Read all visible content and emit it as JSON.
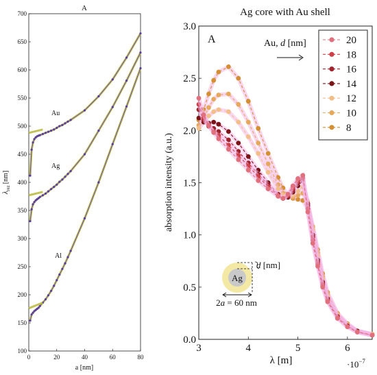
{
  "chart_data": [
    {
      "type": "line",
      "title": "A",
      "xlabel": "a [nm]",
      "ylabel": "λrez [nm]",
      "ylabel_main": "λ",
      "ylabel_sub": "rez",
      "ylabel_unit": "[nm]",
      "xlim": [
        0,
        80
      ],
      "ylim": [
        100,
        700
      ],
      "x_ticks": [
        0,
        20,
        40,
        60,
        80
      ],
      "y_ticks": [
        100,
        150,
        200,
        250,
        300,
        350,
        400,
        450,
        500,
        550,
        600,
        650,
        700
      ],
      "grid": false,
      "series": [
        {
          "name": "Au",
          "x": [
            1,
            2,
            3,
            4,
            5,
            6,
            7,
            8,
            10,
            12,
            14,
            16,
            18,
            20,
            22,
            24,
            26,
            28,
            30,
            40,
            50,
            60,
            70,
            80
          ],
          "values": [
            412,
            458,
            471,
            477,
            480,
            482,
            483,
            484,
            486,
            488,
            490,
            492,
            494,
            497,
            500,
            502,
            505,
            508,
            511,
            528,
            553,
            583,
            622,
            665
          ]
        },
        {
          "name": "Ag",
          "x": [
            1,
            2,
            3,
            4,
            5,
            6,
            7,
            8,
            10,
            12,
            14,
            16,
            18,
            20,
            22,
            24,
            26,
            28,
            30,
            40,
            50,
            60,
            70,
            80
          ],
          "values": [
            331,
            352,
            361,
            365,
            368,
            370,
            372,
            374,
            377,
            380,
            384,
            388,
            392,
            396,
            401,
            405,
            410,
            415,
            420,
            450,
            492,
            534,
            581,
            631
          ]
        },
        {
          "name": "Al",
          "x": [
            1,
            2,
            3,
            4,
            5,
            6,
            7,
            8,
            10,
            12,
            14,
            16,
            18,
            20,
            22,
            24,
            26,
            28,
            30,
            40,
            50,
            60,
            70,
            80
          ],
          "values": [
            154,
            165,
            168,
            171,
            173,
            175,
            177,
            180,
            186,
            192,
            199,
            207,
            216,
            226,
            236,
            246,
            256,
            267,
            278,
            336,
            400,
            468,
            535,
            603
          ]
        }
      ]
    },
    {
      "type": "line",
      "title": "Ag core with Au shell",
      "panel_label": "A",
      "xlabel": "λ [m]",
      "ylabel": "absorption intensity (a.u.)",
      "x_exponent_label": "·10",
      "x_exponent_power": "−7",
      "xlim": [
        3,
        6.5
      ],
      "ylim": [
        0,
        3
      ],
      "x_ticks": [
        3,
        4,
        5,
        6
      ],
      "y_ticks": [
        0.0,
        0.5,
        1.0,
        1.5,
        2.0,
        2.5,
        3.0
      ],
      "y_tick_labels": [
        "0.0",
        "0.5",
        "1.0",
        "1.5",
        "2.0",
        "2.5",
        "3.0"
      ],
      "legend_title": "Au, d [nm]",
      "legend_title_prefix": "Au, ",
      "legend_title_var": "d",
      "legend_title_unit": " [nm]",
      "legend_position": "top-right",
      "grid": false,
      "inset": {
        "core_label": "Ag",
        "shell_label": "d [nm]",
        "shell_var": "d",
        "shell_unit": " [nm]",
        "diameter_label": "2a = 60 nm",
        "diameter_pre": "2",
        "diameter_var": "a",
        "diameter_post": " = 60 nm"
      },
      "series": [
        {
          "name": "20",
          "color": "#e0707c",
          "x": [
            3.0,
            3.1,
            3.2,
            3.3,
            3.4,
            3.6,
            3.8,
            4.0,
            4.2,
            4.4,
            4.6,
            4.7,
            4.8,
            4.9,
            5.0,
            5.1,
            5.2,
            5.3,
            5.4,
            5.5,
            5.6,
            5.8,
            6.0,
            6.2,
            6.5
          ],
          "values": [
            2.31,
            2.15,
            2.05,
            1.98,
            1.92,
            1.82,
            1.72,
            1.62,
            1.52,
            1.44,
            1.37,
            1.35,
            1.39,
            1.47,
            1.54,
            1.57,
            1.22,
            0.92,
            0.7,
            0.5,
            0.36,
            0.2,
            0.12,
            0.07,
            0.04
          ]
        },
        {
          "name": "18",
          "color": "#cd4048",
          "x": [
            3.0,
            3.1,
            3.2,
            3.3,
            3.4,
            3.6,
            3.8,
            4.0,
            4.2,
            4.4,
            4.6,
            4.7,
            4.8,
            4.9,
            5.0,
            5.1,
            5.2,
            5.3,
            5.4,
            5.5,
            5.6,
            5.8,
            6.0,
            6.2,
            6.5
          ],
          "values": [
            2.25,
            2.12,
            2.04,
            1.99,
            1.95,
            1.86,
            1.76,
            1.66,
            1.56,
            1.46,
            1.38,
            1.35,
            1.38,
            1.45,
            1.52,
            1.55,
            1.25,
            0.95,
            0.72,
            0.52,
            0.37,
            0.21,
            0.12,
            0.07,
            0.04
          ]
        },
        {
          "name": "16",
          "color": "#a0222c",
          "x": [
            3.0,
            3.1,
            3.2,
            3.3,
            3.4,
            3.6,
            3.8,
            4.0,
            4.2,
            4.4,
            4.6,
            4.7,
            4.8,
            4.9,
            5.0,
            5.1,
            5.2,
            5.3,
            5.4,
            5.5,
            5.6,
            5.8,
            6.0,
            6.2,
            6.5
          ],
          "values": [
            2.2,
            2.1,
            2.05,
            2.02,
            1.99,
            1.91,
            1.8,
            1.69,
            1.58,
            1.48,
            1.38,
            1.35,
            1.37,
            1.43,
            1.5,
            1.54,
            1.28,
            0.98,
            0.74,
            0.54,
            0.38,
            0.22,
            0.13,
            0.07,
            0.04
          ]
        },
        {
          "name": "14",
          "color": "#7a1418",
          "x": [
            3.0,
            3.1,
            3.2,
            3.3,
            3.4,
            3.6,
            3.8,
            4.0,
            4.2,
            4.4,
            4.6,
            4.7,
            4.8,
            4.9,
            5.0,
            5.1,
            5.2,
            5.3,
            5.4,
            5.5,
            5.6,
            5.8,
            6.0,
            6.2,
            6.5
          ],
          "values": [
            2.12,
            2.08,
            2.07,
            2.08,
            2.06,
            1.99,
            1.88,
            1.75,
            1.62,
            1.5,
            1.39,
            1.35,
            1.36,
            1.41,
            1.47,
            1.52,
            1.3,
            1.0,
            0.76,
            0.55,
            0.39,
            0.22,
            0.13,
            0.08,
            0.04
          ]
        },
        {
          "name": "12",
          "color": "#f2bf8a",
          "x": [
            3.0,
            3.1,
            3.2,
            3.3,
            3.4,
            3.6,
            3.8,
            4.0,
            4.2,
            4.4,
            4.6,
            4.7,
            4.8,
            4.9,
            5.0,
            5.1,
            5.2,
            5.3,
            5.4,
            5.5,
            5.6,
            5.8,
            6.0,
            6.2,
            6.5
          ],
          "values": [
            2.02,
            2.08,
            2.14,
            2.18,
            2.2,
            2.18,
            2.08,
            1.94,
            1.78,
            1.6,
            1.44,
            1.38,
            1.36,
            1.38,
            1.42,
            1.46,
            1.32,
            1.05,
            0.8,
            0.58,
            0.41,
            0.23,
            0.14,
            0.08,
            0.05
          ]
        },
        {
          "name": "10",
          "color": "#e6a85a",
          "x": [
            3.0,
            3.1,
            3.2,
            3.3,
            3.4,
            3.6,
            3.8,
            4.0,
            4.2,
            4.4,
            4.6,
            4.7,
            4.8,
            4.9,
            5.0,
            5.1,
            5.2,
            5.3,
            5.4,
            5.5,
            5.6,
            5.8,
            6.0,
            6.2,
            6.5
          ],
          "values": [
            2.05,
            2.12,
            2.22,
            2.3,
            2.34,
            2.35,
            2.25,
            2.08,
            1.88,
            1.68,
            1.48,
            1.4,
            1.36,
            1.36,
            1.38,
            1.4,
            1.3,
            1.08,
            0.83,
            0.6,
            0.43,
            0.24,
            0.14,
            0.08,
            0.05
          ]
        },
        {
          "name": "8",
          "color": "#d48f32",
          "x": [
            3.0,
            3.1,
            3.2,
            3.3,
            3.4,
            3.6,
            3.8,
            4.0,
            4.2,
            4.4,
            4.6,
            4.7,
            4.8,
            4.9,
            5.0,
            5.1,
            5.2,
            5.3,
            5.4,
            5.5,
            5.6,
            5.8,
            6.0,
            6.2,
            6.5
          ],
          "values": [
            2.1,
            2.2,
            2.35,
            2.48,
            2.56,
            2.61,
            2.5,
            2.28,
            2.02,
            1.78,
            1.55,
            1.45,
            1.38,
            1.35,
            1.34,
            1.33,
            1.25,
            1.08,
            0.86,
            0.63,
            0.45,
            0.25,
            0.15,
            0.08,
            0.05
          ]
        }
      ]
    }
  ]
}
